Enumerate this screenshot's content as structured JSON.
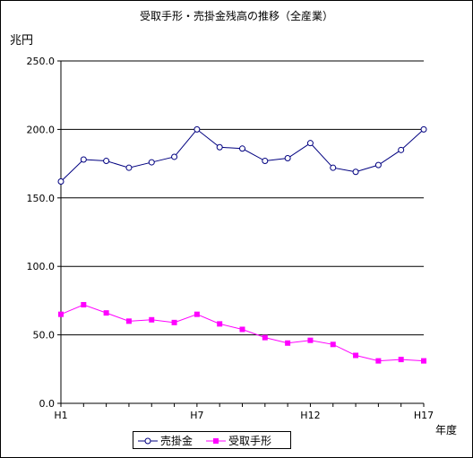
{
  "chart_data": {
    "type": "line",
    "title": "受取手形・売掛金残高の推移（全産業）",
    "ylabel": "兆円",
    "xlabel": "年度",
    "ylim": [
      0,
      250
    ],
    "yticks": [
      "250.0",
      "200.0",
      "150.0",
      "100.0",
      "50.0",
      "0.0"
    ],
    "ytick_values": [
      250,
      200,
      150,
      100,
      50,
      0
    ],
    "x": [
      "H1",
      "H2",
      "H3",
      "H4",
      "H5",
      "H6",
      "H7",
      "H8",
      "H9",
      "H10",
      "H11",
      "H12",
      "H13",
      "H14",
      "H15",
      "H16",
      "H17"
    ],
    "xtick_labels": [
      {
        "index": 0,
        "label": "H1"
      },
      {
        "index": 6,
        "label": "H7"
      },
      {
        "index": 11,
        "label": "H12"
      },
      {
        "index": 16,
        "label": "H17"
      }
    ],
    "grid": "horizontal",
    "legend": "bottom",
    "series": [
      {
        "name": "売掛金",
        "color": "#000080",
        "marker": "circle-open",
        "values": [
          162,
          178,
          177,
          172,
          176,
          180,
          200,
          187,
          186,
          177,
          179,
          190,
          172,
          169,
          174,
          185,
          200
        ]
      },
      {
        "name": "受取手形",
        "color": "#ff00ff",
        "marker": "square-filled",
        "values": [
          65,
          72,
          66,
          60,
          61,
          59,
          65,
          58,
          54,
          48,
          44,
          46,
          43,
          35,
          31,
          32,
          31
        ]
      }
    ]
  }
}
